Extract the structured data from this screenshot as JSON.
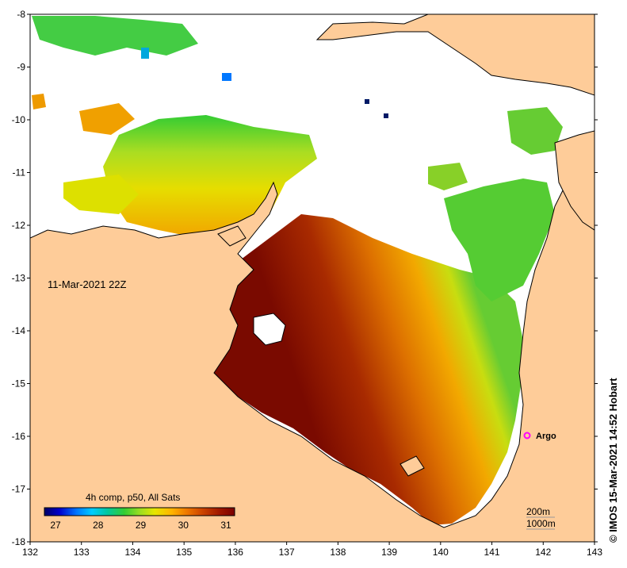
{
  "map": {
    "timestamp": "11-Mar-2021 22Z",
    "credit": "© IMOS 15-Mar-2021 14:52 Hobart",
    "longitude_ticks": [
      "132",
      "133",
      "134",
      "135",
      "136",
      "137",
      "138",
      "139",
      "140",
      "141",
      "142",
      "143"
    ],
    "latitude_ticks": [
      "-8",
      "-9",
      "-10",
      "-11",
      "-12",
      "-13",
      "-14",
      "-15",
      "-16",
      "-17",
      "-18"
    ],
    "legend": {
      "title": "4h comp, p50, All Sats",
      "ticks": [
        "27",
        "28",
        "29",
        "30",
        "31"
      ],
      "color_stops": [
        "#000066",
        "#0000cc",
        "#0077ff",
        "#00ccff",
        "#00c8a0",
        "#33cc33",
        "#99dd22",
        "#e6e600",
        "#ffb300",
        "#ee7700",
        "#cc4400",
        "#a01800",
        "#7a0000"
      ]
    },
    "contours": [
      "200m",
      "1000m"
    ],
    "markers": [
      {
        "label": "Argo",
        "color": "#ff00ff"
      }
    ],
    "colors": {
      "land": "#fecc99",
      "cloud": "#ffffff"
    }
  }
}
